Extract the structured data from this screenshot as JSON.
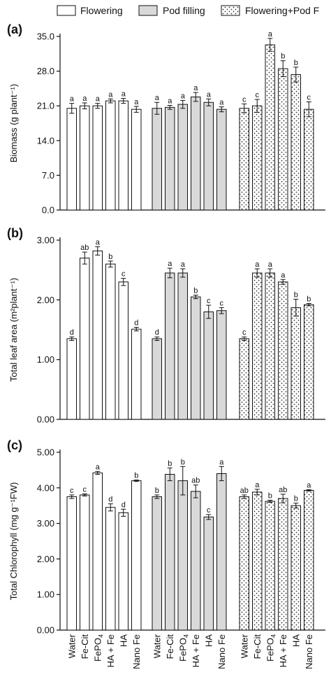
{
  "legend": [
    {
      "name": "Flowering",
      "pattern": "white"
    },
    {
      "name": "Pod filling",
      "pattern": "gray"
    },
    {
      "name": "Flowering+Pod F",
      "pattern": "dotted"
    }
  ],
  "colors": {
    "white": "#ffffff",
    "gray": "#d9d9d9",
    "dotted_bg": "#ffffff",
    "dotted_fg": "#333333",
    "stroke": "#111111"
  },
  "chart_data": [
    {
      "type": "bar",
      "panel_label": "(a)",
      "ylabel": "Biomass (g plant⁻¹)",
      "ylim": [
        0,
        35
      ],
      "yticks": [
        "0.0",
        "7.0",
        "14.0",
        "21.0",
        "28.0",
        "35.0"
      ],
      "categories": [
        "Water",
        "Fe-Cit",
        "FePO4",
        "HA + Fe",
        "HA",
        "Nano Fe"
      ],
      "series": [
        {
          "name": "Flowering",
          "values": [
            20.5,
            21.0,
            21.0,
            22.0,
            22.0,
            20.3
          ],
          "errors": [
            1.0,
            0.6,
            0.5,
            0.4,
            0.5,
            0.6
          ],
          "letters": [
            "a",
            "a",
            "a",
            "a",
            "a",
            "a"
          ]
        },
        {
          "name": "Pod filling",
          "values": [
            20.5,
            20.7,
            21.3,
            22.8,
            21.7,
            20.3
          ],
          "errors": [
            1.2,
            0.4,
            0.8,
            0.9,
            0.7,
            0.5
          ],
          "letters": [
            "a",
            "a",
            "a",
            "a",
            "a",
            "a"
          ]
        },
        {
          "name": "Flowering+Pod F",
          "values": [
            20.5,
            21.0,
            33.3,
            28.5,
            27.3,
            20.3
          ],
          "errors": [
            0.9,
            1.3,
            1.3,
            1.6,
            1.5,
            1.5
          ],
          "letters": [
            "c",
            "c",
            "a",
            "b",
            "b",
            "c"
          ]
        }
      ]
    },
    {
      "type": "bar",
      "panel_label": "(b)",
      "ylabel": "Total leaf area  (m²plant⁻¹)",
      "ylim": [
        0,
        3
      ],
      "yticks": [
        "0.00",
        "1.00",
        "2.00",
        "3.00"
      ],
      "categories": [
        "Water",
        "Fe-Cit",
        "FePO4",
        "HA + Fe",
        "HA",
        "Nano Fe"
      ],
      "series": [
        {
          "name": "Flowering",
          "values": [
            1.35,
            2.7,
            2.82,
            2.6,
            2.3,
            1.51
          ],
          "errors": [
            0.03,
            0.1,
            0.07,
            0.05,
            0.06,
            0.03
          ],
          "letters": [
            "d",
            "ab",
            "a",
            "b",
            "c",
            "d"
          ]
        },
        {
          "name": "Pod filling",
          "values": [
            1.35,
            2.45,
            2.45,
            2.05,
            1.8,
            1.82
          ],
          "errors": [
            0.03,
            0.08,
            0.07,
            0.03,
            0.11,
            0.05
          ],
          "letters": [
            "d",
            "a",
            "a",
            "b",
            "c",
            "c"
          ]
        },
        {
          "name": "Flowering+Pod F",
          "values": [
            1.35,
            2.45,
            2.45,
            2.3,
            1.87,
            1.92
          ],
          "errors": [
            0.03,
            0.07,
            0.07,
            0.04,
            0.14,
            0.02
          ],
          "letters": [
            "c",
            "a",
            "a",
            "a",
            "b",
            "b"
          ]
        }
      ]
    },
    {
      "type": "bar",
      "panel_label": "(c)",
      "ylabel": "Total Chlorophyll (mg g⁻¹FW)",
      "ylim": [
        0,
        5
      ],
      "yticks": [
        "0.00",
        "1.00",
        "2.00",
        "3.00",
        "4.00",
        "5.00"
      ],
      "categories": [
        "Water",
        "Fe-Cit",
        "FePO4",
        "HA + Fe",
        "HA",
        "Nano Fe"
      ],
      "series": [
        {
          "name": "Flowering",
          "values": [
            3.75,
            3.8,
            4.42,
            3.45,
            3.3,
            4.2
          ],
          "errors": [
            0.05,
            0.03,
            0.04,
            0.1,
            0.1,
            0.02
          ],
          "letters": [
            "c",
            "c",
            "a",
            "d",
            "d",
            "b"
          ]
        },
        {
          "name": "Pod filling",
          "values": [
            3.75,
            4.38,
            4.2,
            3.9,
            3.18,
            4.4
          ],
          "errors": [
            0.05,
            0.18,
            0.4,
            0.18,
            0.07,
            0.2
          ],
          "letters": [
            "b",
            "b",
            "b",
            "ab",
            "c",
            "a"
          ]
        },
        {
          "name": "Flowering+Pod F",
          "values": [
            3.75,
            3.88,
            3.62,
            3.7,
            3.5,
            3.93
          ],
          "errors": [
            0.05,
            0.08,
            0.03,
            0.12,
            0.07,
            0.02
          ],
          "letters": [
            "ab",
            "a",
            "b",
            "ab",
            "b",
            "a"
          ]
        }
      ]
    }
  ]
}
